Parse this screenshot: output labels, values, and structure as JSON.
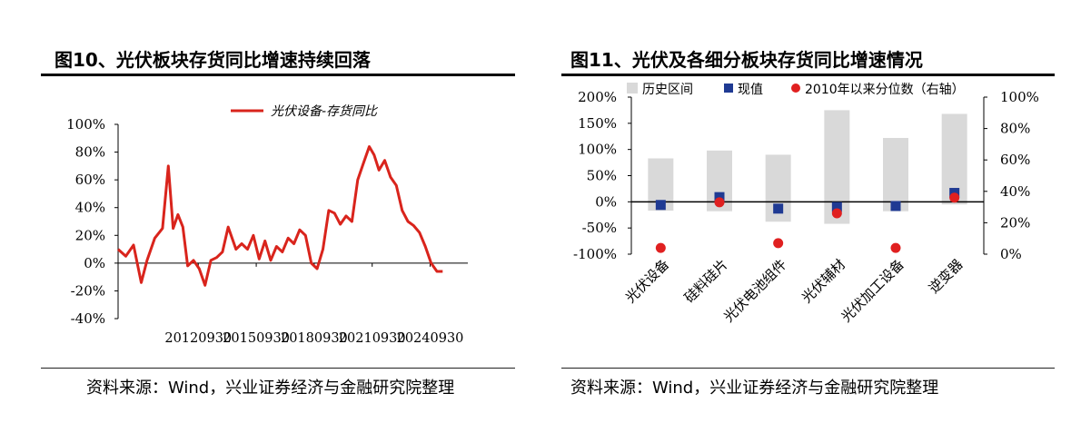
{
  "left": {
    "title": "图10、光伏板块存货同比增速持续回落",
    "source": "资料来源：Wind，兴业证券经济与金融研究院整理"
  },
  "right": {
    "title": "图11、光伏及各细分板块存货同比增速情况",
    "source": "资料来源：Wind，兴业证券经济与金融研究院整理"
  },
  "colors": {
    "line": "#d9241c",
    "range": "#d9d9d9",
    "current": "#1f3a93",
    "percentile": "#e02020"
  },
  "chart_data": [
    {
      "type": "line",
      "title": "",
      "ylim": [
        -40,
        100
      ],
      "yticks": [
        "100%",
        "80%",
        "60%",
        "40%",
        "20%",
        "0%",
        "-20%",
        "-40%"
      ],
      "ytick_values": [
        100,
        80,
        60,
        40,
        20,
        0,
        -20,
        -40
      ],
      "xticks": [
        "20120930",
        "20150930",
        "20180930",
        "20210930",
        "20240930"
      ],
      "xtick_values": [
        2012.75,
        2015.75,
        2018.75,
        2021.75,
        2024.75
      ],
      "xlim": [
        2008.6,
        2026.7
      ],
      "series": [
        {
          "name": "光伏设备-存货同比",
          "x": [
            2008.6,
            2009.0,
            2009.4,
            2009.8,
            2010.1,
            2010.5,
            2010.9,
            2011.2,
            2011.45,
            2011.7,
            2011.95,
            2012.2,
            2012.5,
            2012.8,
            2013.1,
            2013.4,
            2013.7,
            2014.0,
            2014.3,
            2014.7,
            2015.0,
            2015.3,
            2015.6,
            2015.9,
            2016.2,
            2016.5,
            2016.8,
            2017.1,
            2017.4,
            2017.7,
            2018.0,
            2018.3,
            2018.6,
            2018.9,
            2019.2,
            2019.5,
            2019.8,
            2020.1,
            2020.4,
            2020.7,
            2021.0,
            2021.3,
            2021.6,
            2021.85,
            2022.1,
            2022.4,
            2022.7,
            2023.0,
            2023.3,
            2023.6,
            2023.9,
            2024.2,
            2024.5,
            2024.8,
            2025.1,
            2025.4
          ],
          "values": [
            10,
            5,
            13,
            -14,
            2,
            18,
            25,
            70,
            25,
            35,
            26,
            -2,
            2,
            -4,
            -16,
            2,
            4,
            8,
            26,
            10,
            14,
            10,
            20,
            3,
            16,
            2,
            12,
            8,
            18,
            14,
            24,
            20,
            0,
            -4,
            10,
            38,
            36,
            28,
            34,
            30,
            60,
            72,
            84,
            78,
            67,
            74,
            62,
            56,
            38,
            30,
            27,
            22,
            12,
            0,
            -6,
            -6
          ]
        }
      ]
    },
    {
      "type": "bar",
      "title": "",
      "ylim": [
        -100,
        200
      ],
      "yticks": [
        "200%",
        "150%",
        "100%",
        "50%",
        "0%",
        "-50%",
        "-100%"
      ],
      "ytick_values": [
        200,
        150,
        100,
        50,
        0,
        -50,
        -100
      ],
      "y2lim": [
        0,
        100
      ],
      "y2ticks": [
        "100%",
        "80%",
        "60%",
        "40%",
        "20%",
        "0%"
      ],
      "y2tick_values": [
        100,
        80,
        60,
        40,
        20,
        0
      ],
      "categories": [
        "光伏设备",
        "硅料硅片",
        "光伏电池组件",
        "光伏辅材",
        "光伏加工设备",
        "逆变器"
      ],
      "legend": [
        "历史区间",
        "现值",
        "2010年以来分位数（右轴）"
      ],
      "range_high": [
        83,
        98,
        90,
        175,
        122,
        168
      ],
      "range_low": [
        -17,
        -18,
        -38,
        -42,
        -18,
        -5
      ],
      "current": [
        -6,
        9,
        -13,
        -10,
        -8,
        17
      ],
      "percentile": [
        4,
        33,
        7,
        26,
        4,
        36
      ]
    }
  ]
}
